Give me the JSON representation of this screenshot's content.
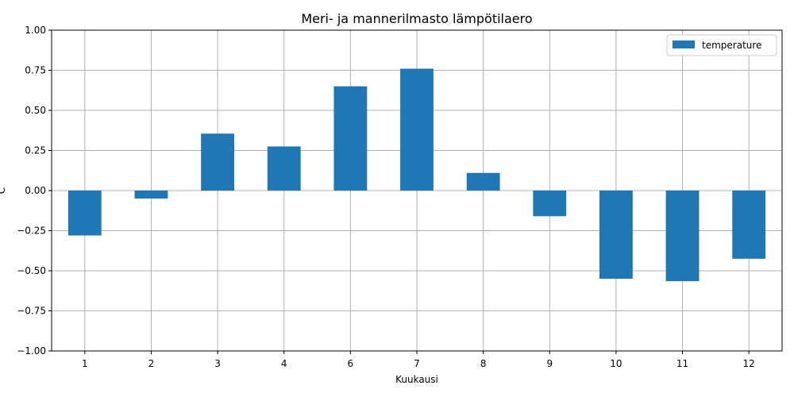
{
  "chart_data": {
    "type": "bar",
    "title": "Meri- ja mannerilmasto lämpötilaero",
    "xlabel": "Kuukausi",
    "ylabel": "C",
    "categories": [
      "1",
      "2",
      "3",
      "4",
      "6",
      "7",
      "8",
      "9",
      "10",
      "11",
      "12"
    ],
    "series": [
      {
        "name": "temperature",
        "values": [
          -0.28,
          -0.05,
          0.355,
          0.275,
          0.65,
          0.76,
          0.11,
          -0.16,
          -0.55,
          -0.565,
          -0.425
        ]
      }
    ],
    "ylim": [
      -1.0,
      1.0
    ],
    "yticks": [
      "−1.00",
      "−0.75",
      "−0.50",
      "−0.25",
      "0.00",
      "0.25",
      "0.50",
      "0.75",
      "1.00"
    ],
    "grid": true,
    "legend_position": "top-right",
    "colors": {
      "bar": "#1f77b4",
      "grid": "#b0b0b0"
    }
  }
}
